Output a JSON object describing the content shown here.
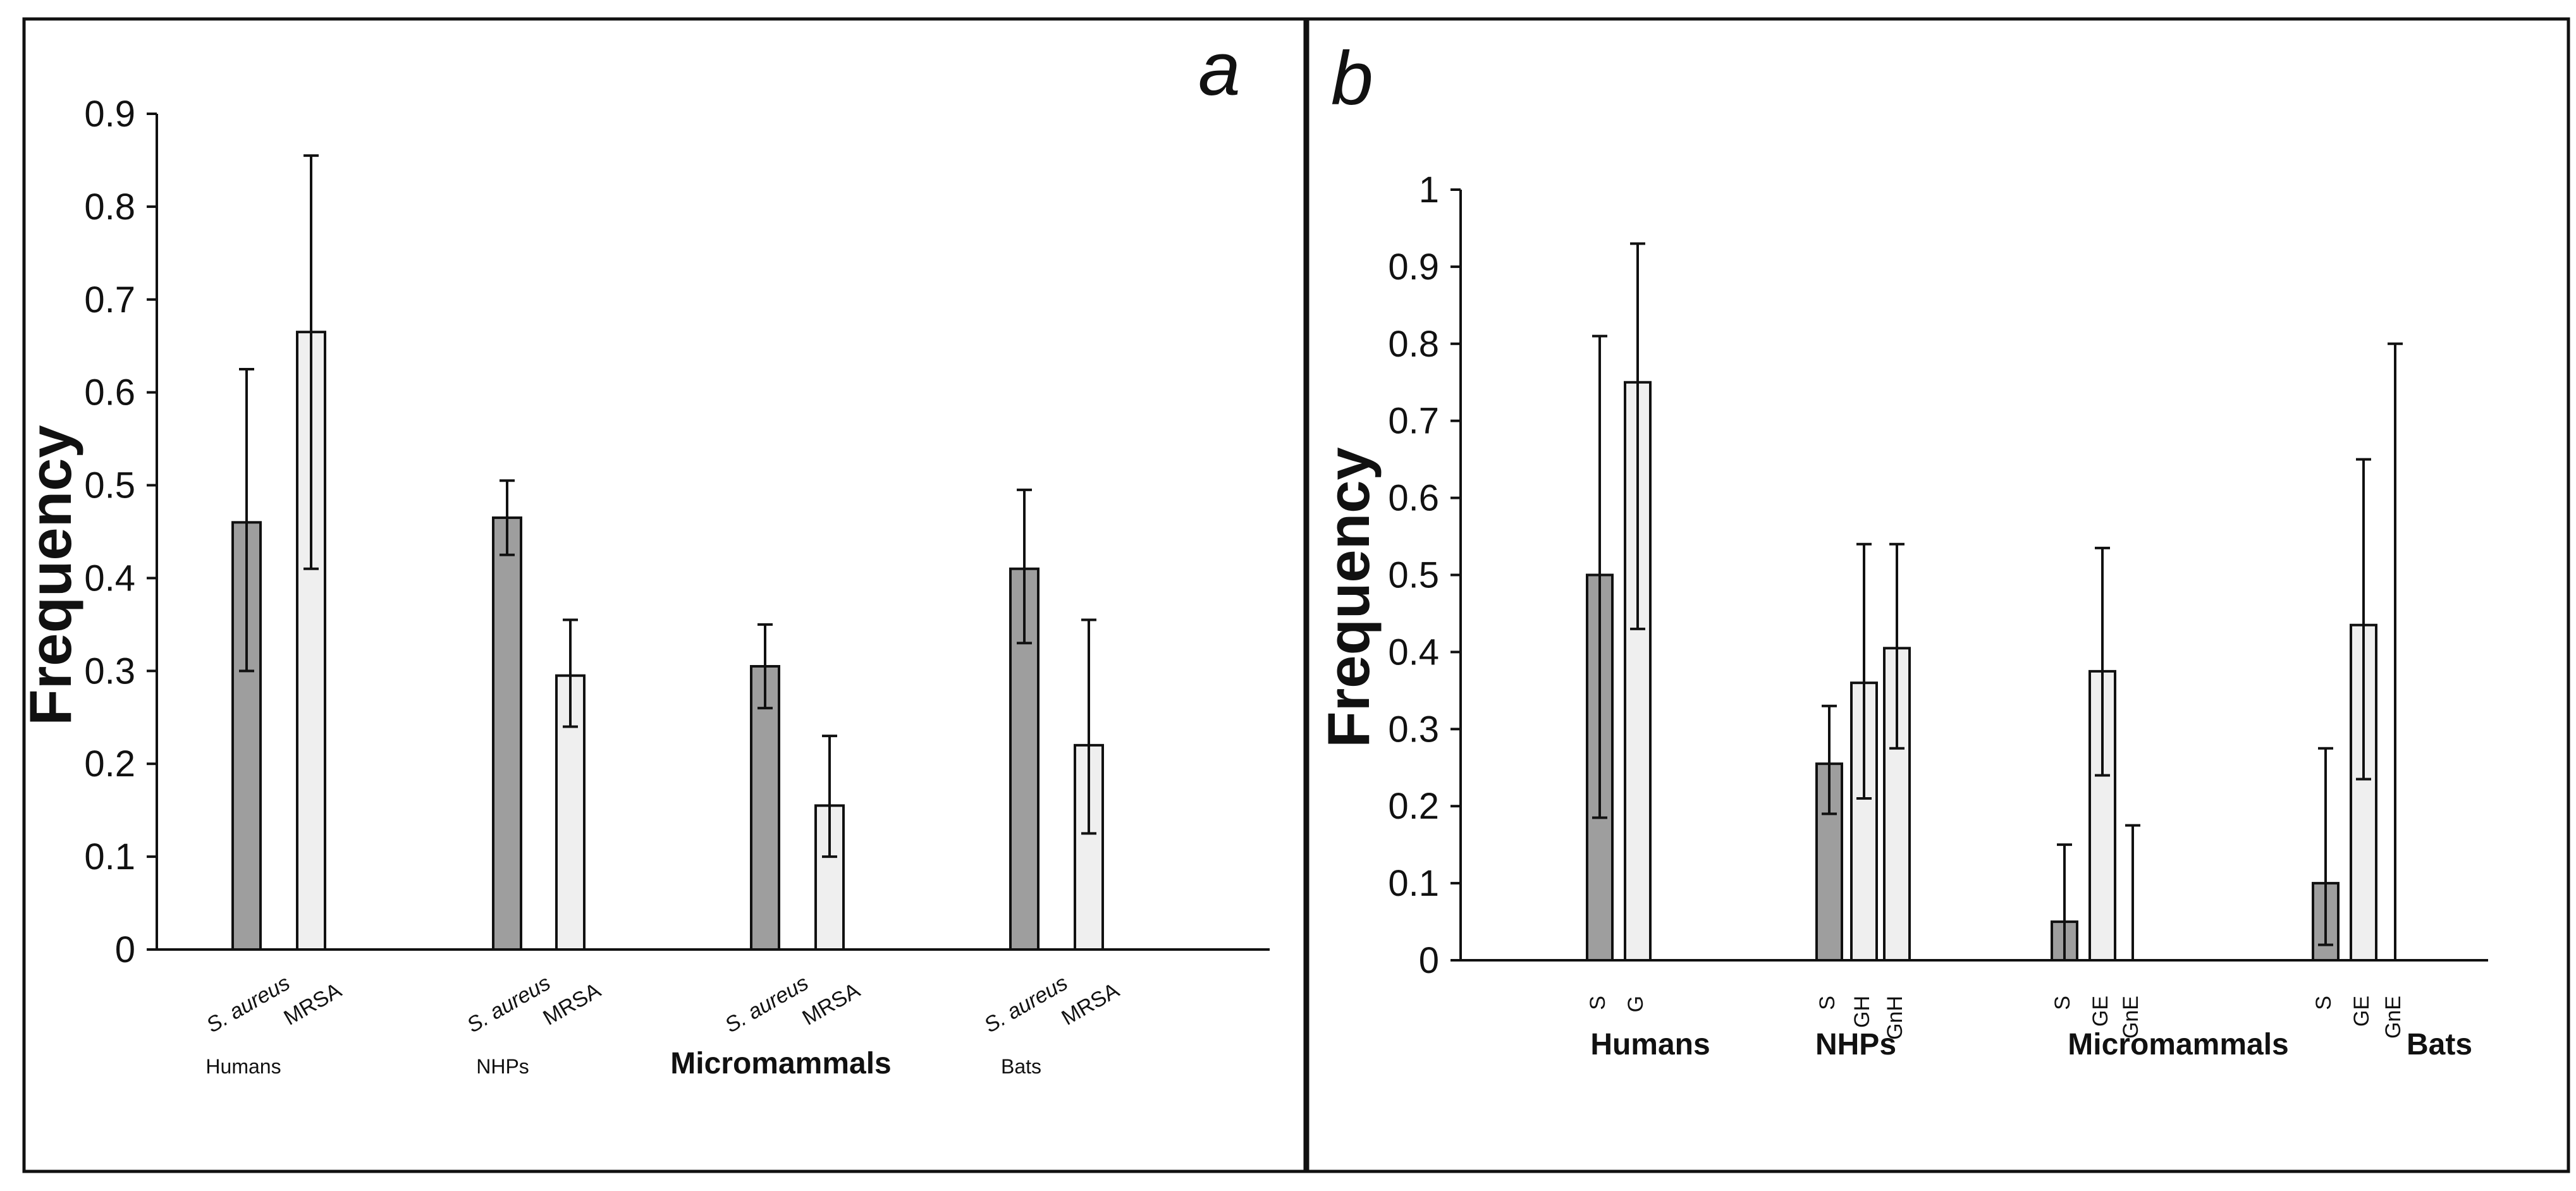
{
  "chart_data": [
    {
      "type": "bar",
      "panel": "a",
      "ylabel": "Frequency",
      "ylim": [
        0,
        0.9
      ],
      "yticks": [
        "0",
        "0.1",
        "0.2",
        "0.3",
        "0.4",
        "0.5",
        "0.6",
        "0.7",
        "0.8",
        "0.9"
      ],
      "groups": [
        {
          "name": "Humans",
          "style": "small",
          "bars": [
            {
              "label": "S. aureus",
              "italic": true,
              "value": 0.46,
              "err_low": 0.3,
              "err_high": 0.625,
              "fill": "#9e9e9e"
            },
            {
              "label": "MRSA",
              "italic": false,
              "value": 0.665,
              "err_low": 0.41,
              "err_high": 0.855,
              "fill": "#efefef"
            }
          ]
        },
        {
          "name": "NHPs",
          "style": "small",
          "bars": [
            {
              "label": "S. aureus",
              "italic": true,
              "value": 0.465,
              "err_low": 0.425,
              "err_high": 0.505,
              "fill": "#9e9e9e"
            },
            {
              "label": "MRSA",
              "italic": false,
              "value": 0.295,
              "err_low": 0.24,
              "err_high": 0.355,
              "fill": "#efefef"
            }
          ]
        },
        {
          "name": "Micromammals",
          "style": "big",
          "bars": [
            {
              "label": "S. aureus",
              "italic": true,
              "value": 0.305,
              "err_low": 0.26,
              "err_high": 0.35,
              "fill": "#9e9e9e"
            },
            {
              "label": "MRSA",
              "italic": false,
              "value": 0.155,
              "err_low": 0.1,
              "err_high": 0.23,
              "fill": "#efefef"
            }
          ]
        },
        {
          "name": "Bats",
          "style": "small",
          "bars": [
            {
              "label": "S. aureus",
              "italic": true,
              "value": 0.41,
              "err_low": 0.33,
              "err_high": 0.495,
              "fill": "#9e9e9e"
            },
            {
              "label": "MRSA",
              "italic": false,
              "value": 0.22,
              "err_low": 0.125,
              "err_high": 0.355,
              "fill": "#efefef"
            }
          ]
        }
      ]
    },
    {
      "type": "bar",
      "panel": "b",
      "ylabel": "Frequency",
      "ylim": [
        0,
        1
      ],
      "yticks": [
        "0",
        "0.1",
        "0.2",
        "0.3",
        "0.4",
        "0.5",
        "0.6",
        "0.7",
        "0.8",
        "0.9",
        "1"
      ],
      "groups": [
        {
          "name": "Humans",
          "style": "big",
          "bars": [
            {
              "label": "S",
              "value": 0.5,
              "err_low": 0.185,
              "err_high": 0.81,
              "fill": "#9e9e9e"
            },
            {
              "label": "G",
              "value": 0.75,
              "err_low": 0.43,
              "err_high": 0.93,
              "fill": "#efefef"
            }
          ]
        },
        {
          "name": "NHPs",
          "style": "big",
          "bars": [
            {
              "label": "S",
              "value": 0.255,
              "err_low": 0.19,
              "err_high": 0.33,
              "fill": "#9e9e9e"
            },
            {
              "label": "GH",
              "value": 0.36,
              "err_low": 0.21,
              "err_high": 0.54,
              "fill": "#efefef"
            },
            {
              "label": "GnH",
              "value": 0.405,
              "err_low": 0.275,
              "err_high": 0.54,
              "fill": "#efefef"
            }
          ]
        },
        {
          "name": "Micromammals",
          "style": "big",
          "bars": [
            {
              "label": "S",
              "value": 0.05,
              "err_low": 0.0,
              "err_high": 0.15,
              "fill": "#9e9e9e"
            },
            {
              "label": "GE",
              "value": 0.375,
              "err_low": 0.24,
              "err_high": 0.535,
              "fill": "#efefef"
            },
            {
              "label": "GnE",
              "value": 0.0,
              "err_low": 0.0,
              "err_high": 0.175,
              "fill": "#efefef"
            }
          ]
        },
        {
          "name": "Bats",
          "style": "big",
          "bars": [
            {
              "label": "S",
              "value": 0.1,
              "err_low": 0.02,
              "err_high": 0.275,
              "fill": "#9e9e9e"
            },
            {
              "label": "GE",
              "value": 0.435,
              "err_low": 0.235,
              "err_high": 0.65,
              "fill": "#efefef"
            },
            {
              "label": "GnE",
              "value": 0.0,
              "err_low": 0.0,
              "err_high": 0.8,
              "fill": "#efefef"
            }
          ]
        }
      ]
    }
  ]
}
